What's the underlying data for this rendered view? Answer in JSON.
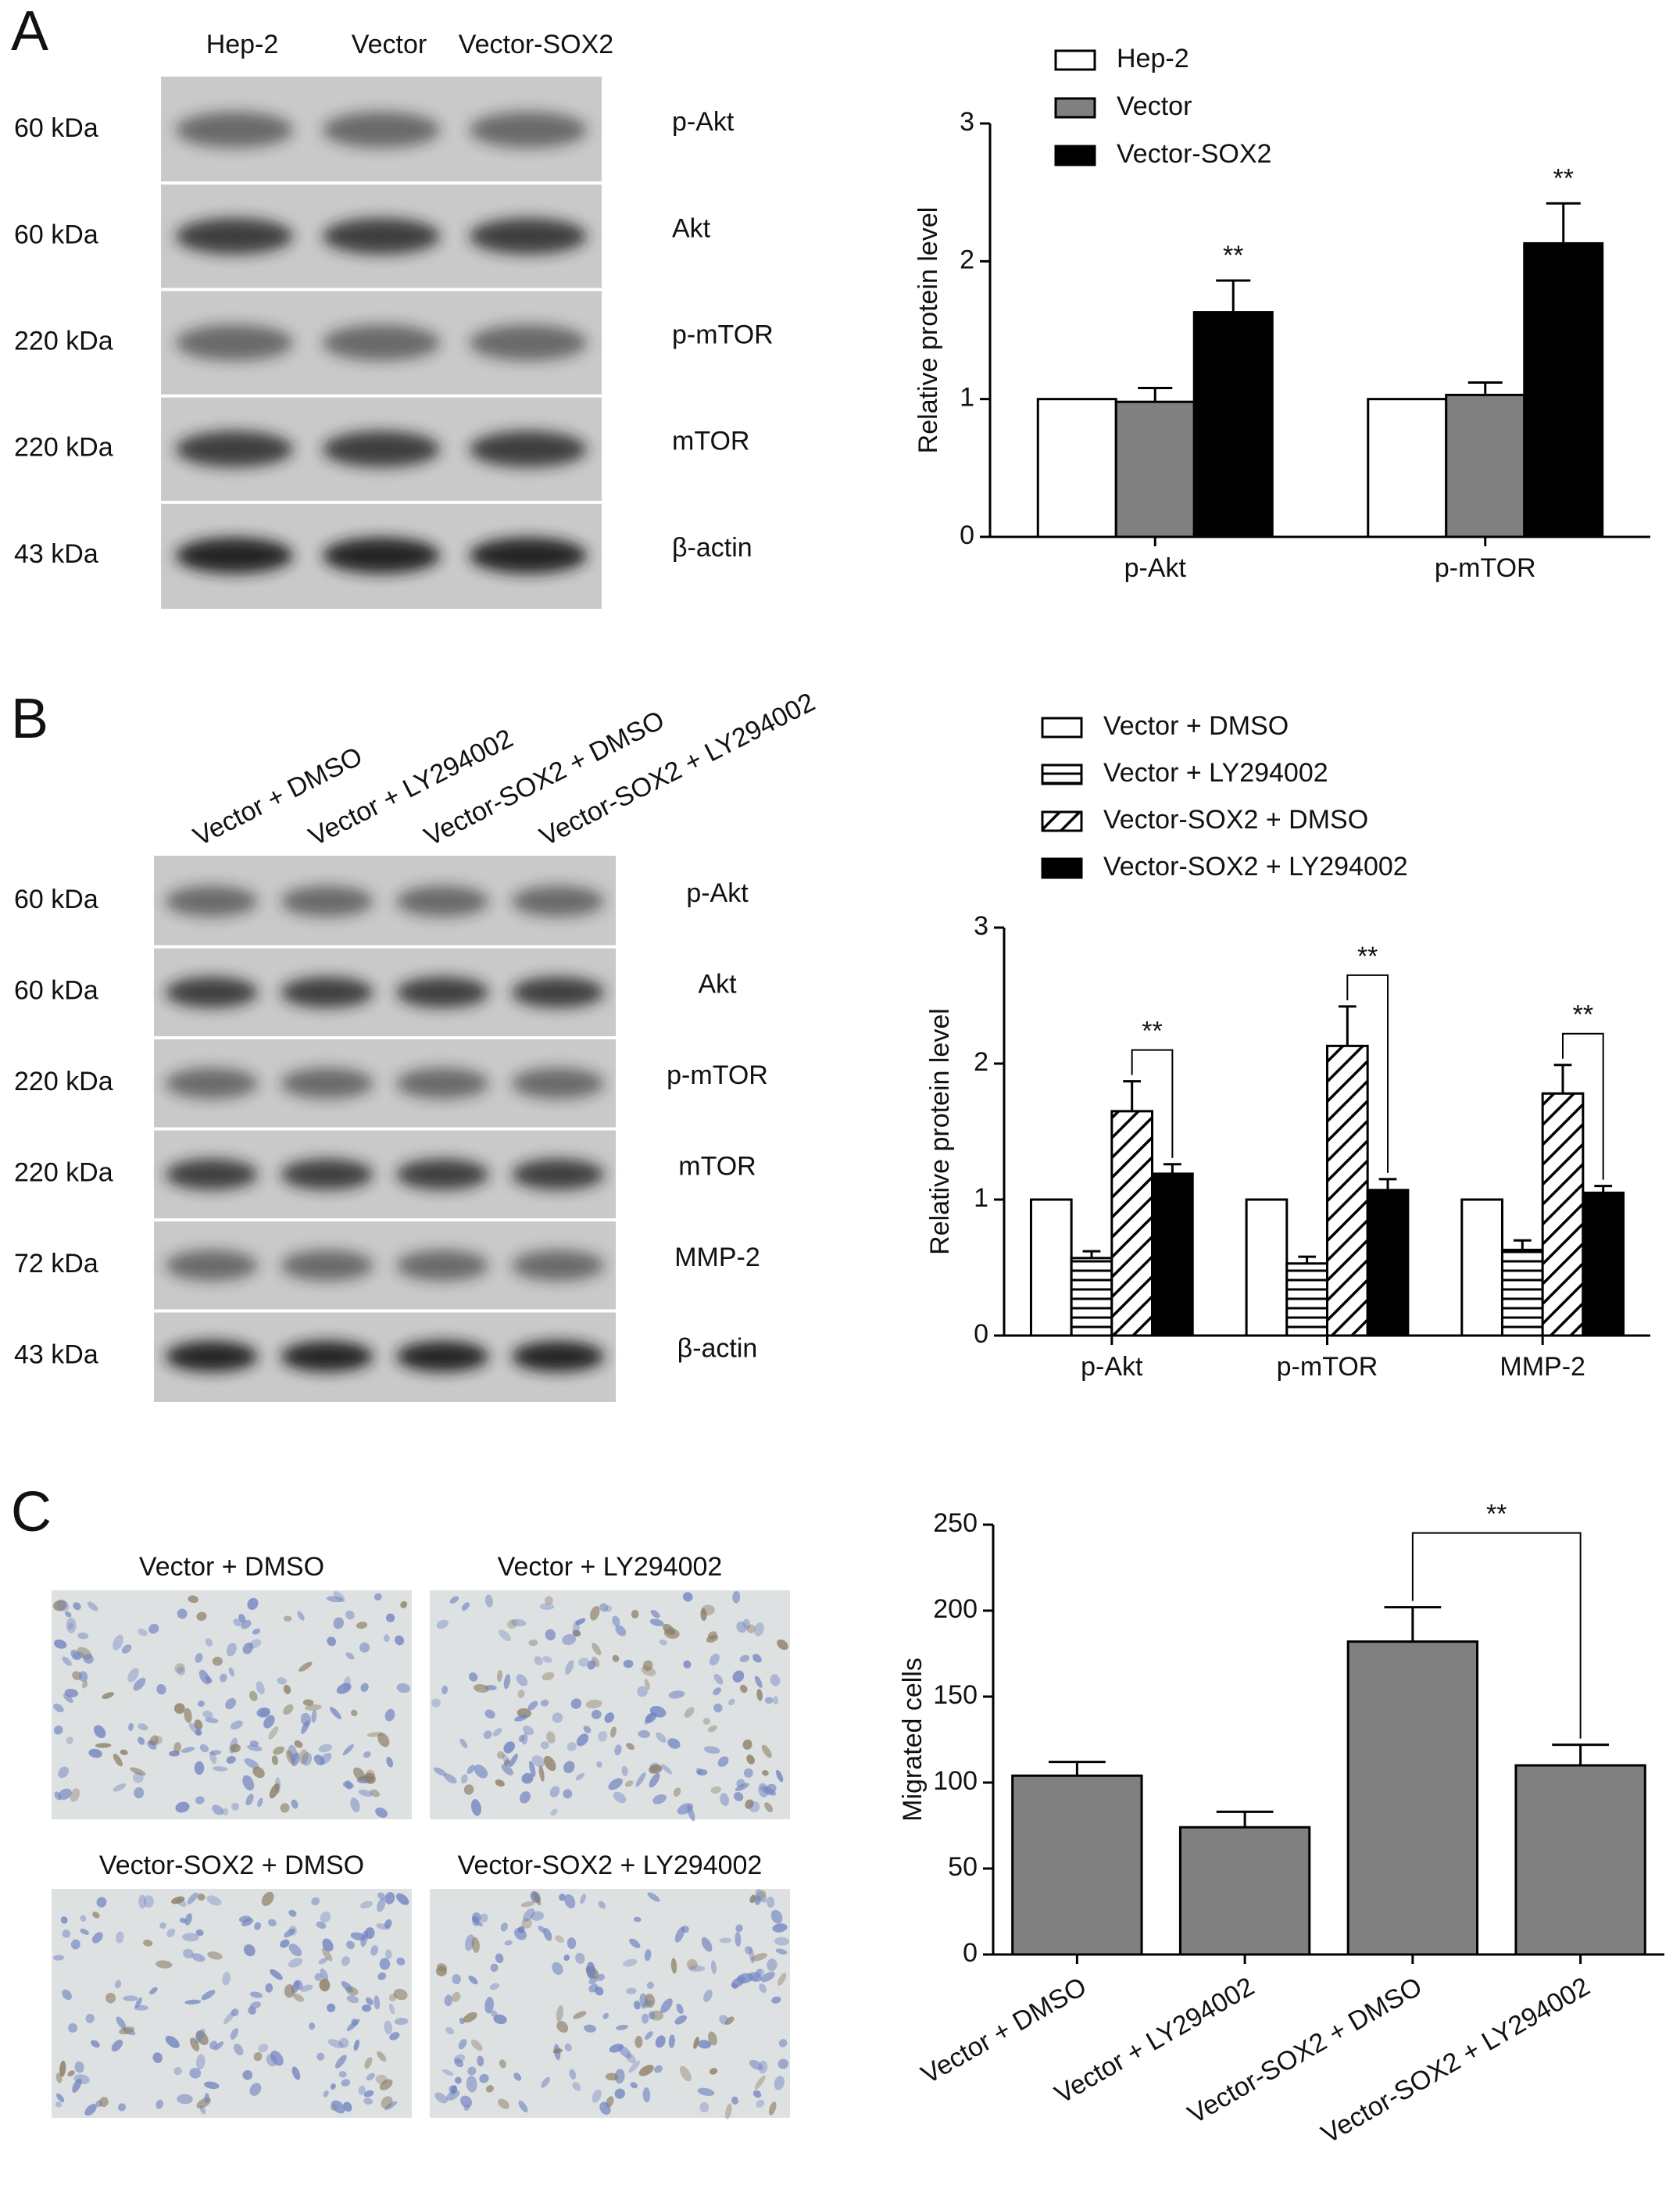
{
  "figure": {
    "panel_labels": [
      "A",
      "B",
      "C"
    ],
    "blots": [
      {
        "lanes": [
          "Hep-2",
          "Vector",
          "Vector-SOX2"
        ],
        "rows": [
          {
            "size": "60 kDa",
            "protein": "p-Akt"
          },
          {
            "size": "60 kDa",
            "protein": "Akt"
          },
          {
            "size": "220 kDa",
            "protein": "p-mTOR"
          },
          {
            "size": "220 kDa",
            "protein": "mTOR"
          },
          {
            "size": "43 kDa",
            "protein": "β-actin"
          }
        ]
      },
      {
        "lanes": [
          "Vector + DMSO",
          "Vector + LY294002",
          "Vector-SOX2 + DMSO",
          "Vector-SOX2 + LY294002"
        ],
        "rows": [
          {
            "size": "60 kDa",
            "protein": "p-Akt"
          },
          {
            "size": "60 kDa",
            "protein": "Akt"
          },
          {
            "size": "220 kDa",
            "protein": "p-mTOR"
          },
          {
            "size": "220 kDa",
            "protein": "mTOR"
          },
          {
            "size": "72 kDa",
            "protein": "MMP-2"
          },
          {
            "size": "43 kDa",
            "protein": "β-actin"
          }
        ]
      }
    ],
    "micrographs": [
      {
        "caption": "Vector + DMSO"
      },
      {
        "caption": "Vector + LY294002"
      },
      {
        "caption": "Vector-SOX2 + DMSO"
      },
      {
        "caption": "Vector-SOX2 + LY294002"
      }
    ]
  },
  "chart_data": [
    {
      "type": "bar",
      "ylabel": "Relative protein level",
      "categories": [
        "p-Akt",
        "p-mTOR"
      ],
      "series": [
        {
          "name": "Hep-2",
          "color": "#ffffff",
          "pattern": "none",
          "values": [
            1,
            1
          ]
        },
        {
          "name": "Vector",
          "color": "#808080",
          "pattern": "none",
          "values": [
            0.98,
            1.03
          ],
          "errors": [
            0.1,
            0.09
          ]
        },
        {
          "name": "Vector-SOX2",
          "color": "#000000",
          "pattern": "none",
          "values": [
            1.63,
            2.13
          ],
          "errors": [
            0.23,
            0.29
          ]
        }
      ],
      "ylim": [
        0,
        3
      ],
      "yticks": [
        0,
        1,
        2,
        3
      ],
      "annotations": [
        {
          "text": "**",
          "category": 0,
          "series": 2
        },
        {
          "text": "**",
          "category": 1,
          "series": 2
        }
      ]
    },
    {
      "type": "bar",
      "ylabel": "Relative protein level",
      "categories": [
        "p-Akt",
        "p-mTOR",
        "MMP-2"
      ],
      "series": [
        {
          "name": "Vector + DMSO",
          "color": "#ffffff",
          "pattern": "none",
          "values": [
            1,
            1,
            1
          ]
        },
        {
          "name": "Vector + LY294002",
          "color": "#ffffff",
          "pattern": "horizontal",
          "values": [
            0.57,
            0.53,
            0.63
          ],
          "errors": [
            0.05,
            0.05,
            0.07
          ]
        },
        {
          "name": "Vector-SOX2 + DMSO",
          "color": "#ffffff",
          "pattern": "diagonal",
          "values": [
            1.65,
            2.13,
            1.78
          ],
          "errors": [
            0.22,
            0.29,
            0.21
          ]
        },
        {
          "name": "Vector-SOX2 + LY294002",
          "color": "#000000",
          "pattern": "none",
          "values": [
            1.19,
            1.07,
            1.05
          ],
          "errors": [
            0.07,
            0.08,
            0.05
          ]
        }
      ],
      "ylim": [
        0,
        3
      ],
      "yticks": [
        0,
        1,
        2,
        3
      ],
      "brackets": [
        {
          "text": "**",
          "category": 0,
          "series": [
            2,
            3
          ]
        },
        {
          "text": "**",
          "category": 1,
          "series": [
            2,
            3
          ]
        },
        {
          "text": "**",
          "category": 2,
          "series": [
            2,
            3
          ]
        }
      ]
    },
    {
      "type": "bar",
      "ylabel": "Migrated cells",
      "categories": [
        "Vector + DMSO",
        "Vector + LY294002",
        "Vector-SOX2 + DMSO",
        "Vector-SOX2 + LY294002"
      ],
      "series": [
        {
          "color": "#808080",
          "pattern": "none",
          "values": [
            104,
            74,
            182,
            110
          ],
          "errors": [
            8,
            9,
            20,
            12
          ]
        }
      ],
      "ylim": [
        0,
        250
      ],
      "yticks": [
        0,
        50,
        100,
        150,
        200,
        250
      ],
      "brackets": [
        {
          "text": "**",
          "categories": [
            2,
            3
          ]
        }
      ]
    }
  ]
}
